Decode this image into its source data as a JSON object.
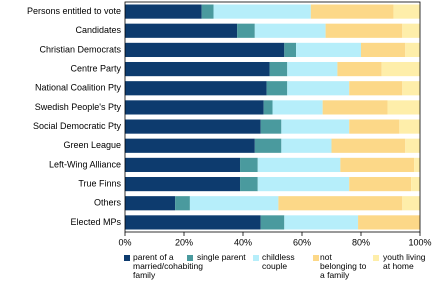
{
  "chart_data": {
    "type": "stacked-bar-horizontal",
    "categories": [
      "Persons entitled to vote",
      "Candidates",
      "Christian Democrats",
      "Centre Party",
      "National Coalition Pty",
      "Swedish People's Pty",
      "Social Democratic Pty",
      "Green League",
      "Left-Wing Alliance",
      "True Finns",
      "Others",
      "Elected MPs"
    ],
    "series": [
      {
        "name": "parent of a married/cohabiting family",
        "color": "#0d3b6e",
        "values": [
          26,
          38,
          54,
          49,
          48,
          47,
          46,
          44,
          39,
          39,
          17,
          46
        ]
      },
      {
        "name": "single parent",
        "color": "#4a9a9e",
        "values": [
          4,
          6,
          4,
          6,
          7,
          3,
          7,
          9,
          6,
          6,
          5,
          8
        ]
      },
      {
        "name": "childless couple",
        "color": "#b6eefa",
        "values": [
          33,
          24,
          22,
          17,
          21,
          17,
          23,
          17,
          28,
          31,
          30,
          25
        ]
      },
      {
        "name": "not belonging to a family",
        "color": "#fcd888",
        "values": [
          28,
          26,
          15,
          15,
          18,
          22,
          17,
          25,
          25,
          21,
          42,
          21
        ]
      },
      {
        "name": "youth living at home",
        "color": "#feeeaa",
        "values": [
          9,
          6,
          5,
          13,
          6,
          11,
          7,
          5,
          2,
          3,
          6,
          0
        ]
      }
    ],
    "xlim": [
      0,
      100
    ],
    "xticks": [
      {
        "value": 0,
        "label": "0%"
      },
      {
        "value": 20,
        "label": "20%"
      },
      {
        "value": 40,
        "label": "40%"
      },
      {
        "value": 60,
        "label": "60%"
      },
      {
        "value": 80,
        "label": "80%"
      },
      {
        "value": 100,
        "label": "100%"
      }
    ]
  }
}
